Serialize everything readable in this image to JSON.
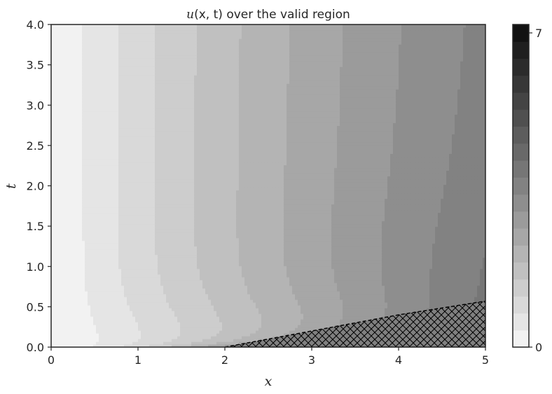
{
  "chart_data": {
    "type": "contour",
    "title": "u(x, t) over the valid region",
    "title_parts": {
      "func": "u",
      "args": "(x, t)",
      "rest": " over the valid region"
    },
    "xlabel": "x",
    "ylabel": "t",
    "xlim": [
      0,
      5
    ],
    "ylim": [
      0,
      4
    ],
    "xticks": [
      0,
      1,
      2,
      3,
      4,
      5
    ],
    "xtick_labels": [
      "0",
      "1",
      "2",
      "3",
      "4",
      "5"
    ],
    "yticks": [
      0,
      0.5,
      1,
      1.5,
      2,
      2.5,
      3,
      3.5,
      4
    ],
    "ytick_labels": [
      "0.0",
      "0.5",
      "1.0",
      "1.5",
      "2.0",
      "2.5",
      "3.0",
      "3.5",
      "4.0"
    ],
    "colorbar": {
      "min": 0,
      "max": 7,
      "n_levels": 19,
      "tick_values": [
        0,
        7
      ],
      "tick_labels": [
        "0",
        "7"
      ],
      "colormap": "Greys"
    },
    "contour_levels_at_t0": [
      0.2,
      0.4,
      0.6,
      0.8,
      1.0,
      1.2,
      1.4,
      1.6,
      1.8,
      2.0
    ],
    "contour_levels_at_t4": [
      0.4,
      0.8,
      1.2,
      1.6,
      2.0,
      2.4,
      2.8,
      3.2,
      3.6,
      4.0,
      4.4,
      4.8
    ],
    "invalid_region_boundary": {
      "x": [
        2.0,
        3.0,
        4.0,
        5.0
      ],
      "t": [
        0.0,
        0.2,
        0.4,
        0.57
      ]
    },
    "invalid_region_fill": "#808080",
    "grid": false
  }
}
